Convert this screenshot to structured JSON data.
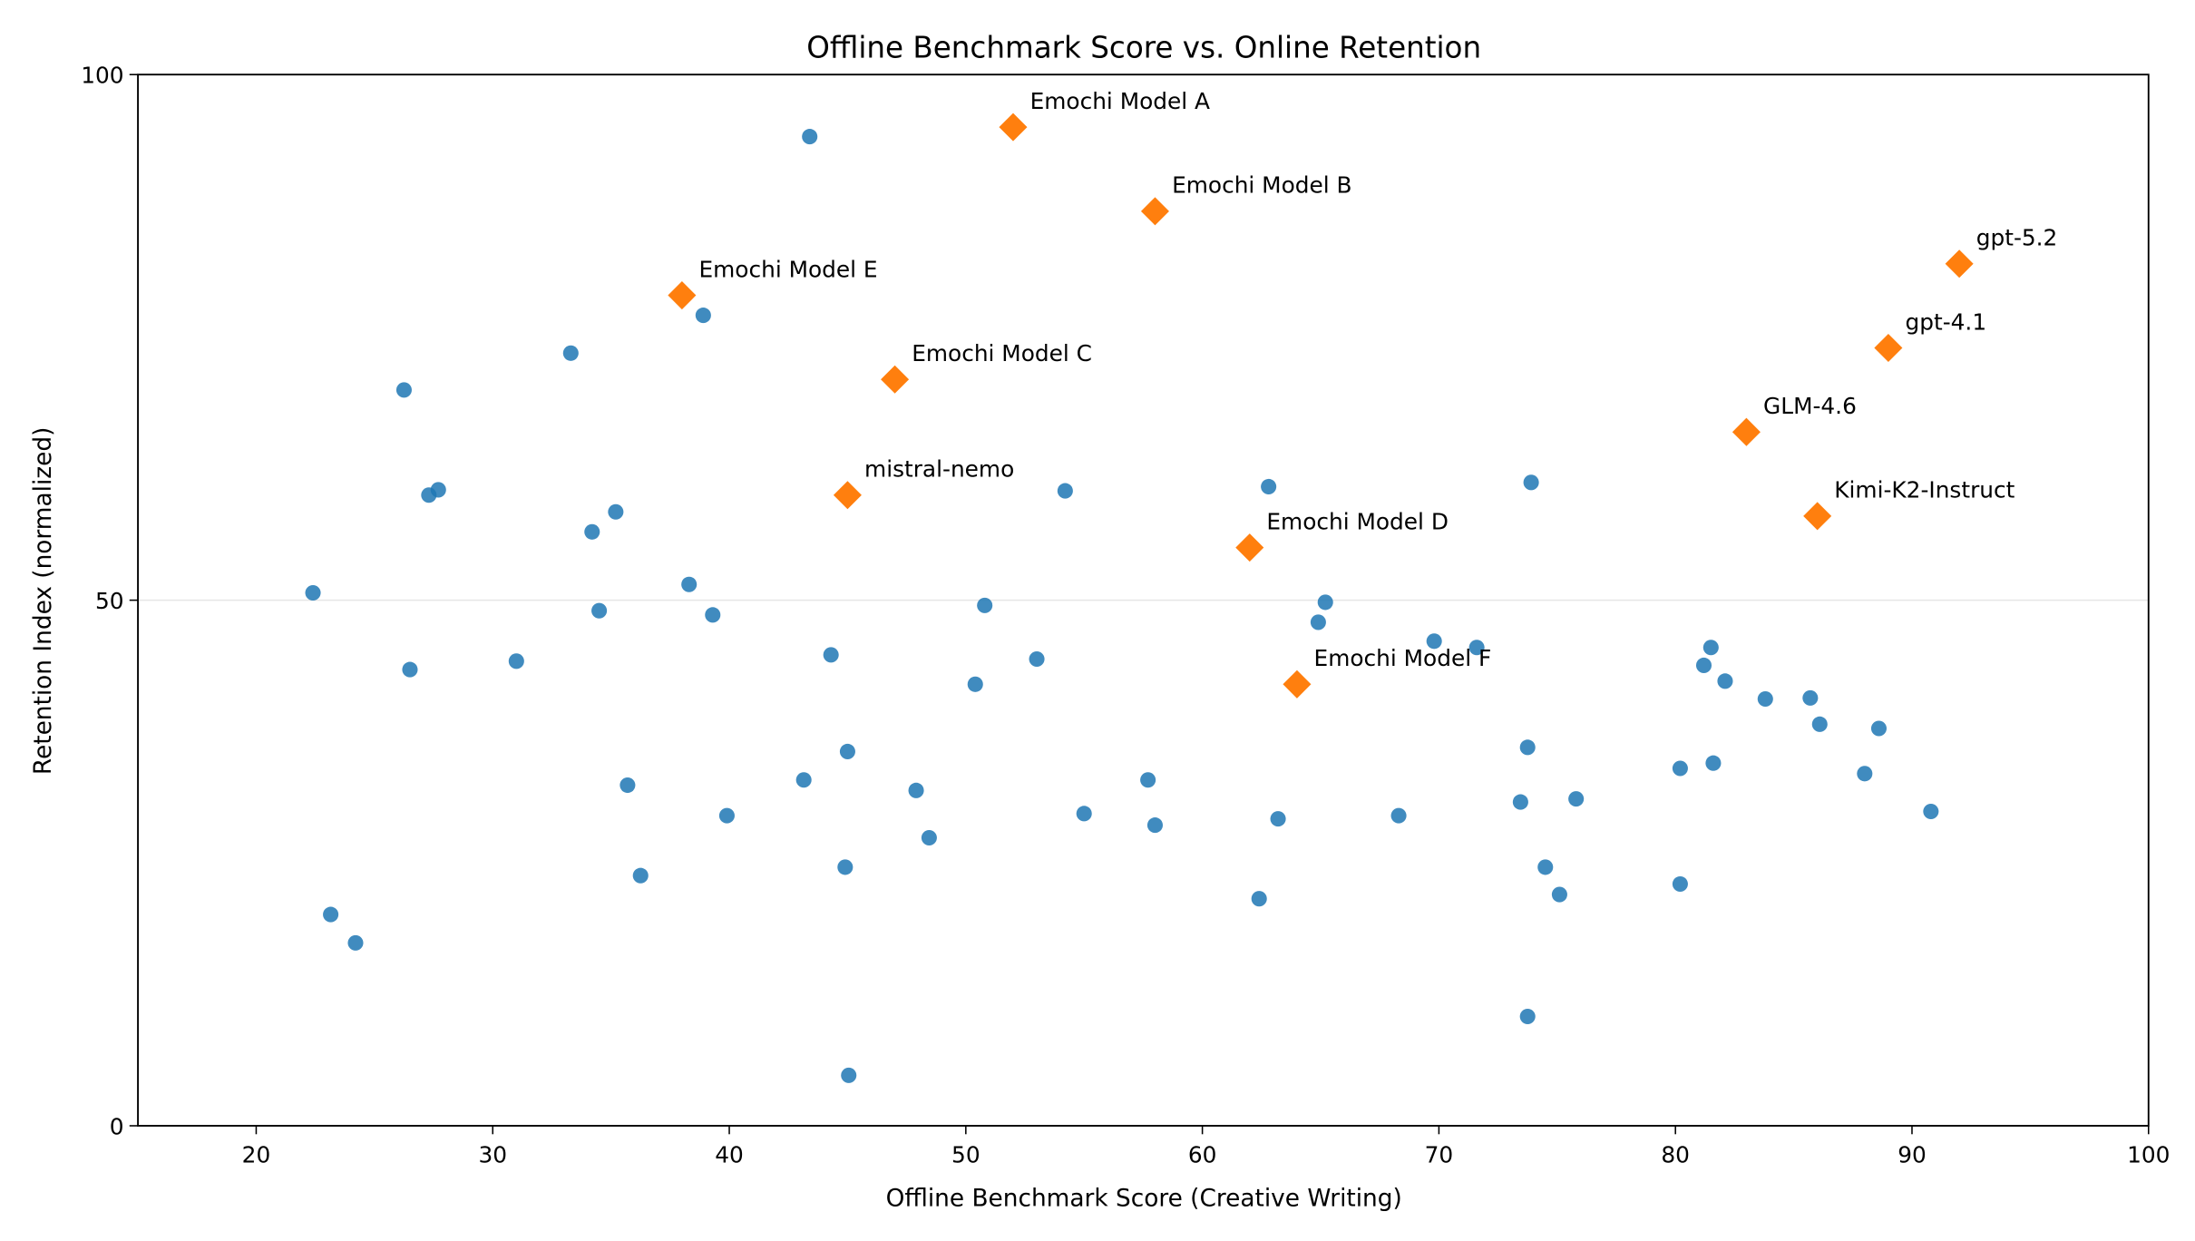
{
  "chart_data": {
    "type": "scatter",
    "title": "Offline Benchmark Score vs. Online Retention",
    "x_label": "Offline Benchmark Score (Creative Writing)",
    "y_label": "Retention Index (normalized)",
    "xlim": [
      15,
      100
    ],
    "xticks": [
      20,
      30,
      40,
      50,
      60,
      70,
      80,
      90,
      100
    ],
    "ylim": [
      0,
      100
    ],
    "yticks": [
      0,
      50,
      100
    ],
    "grid": "y",
    "series": [
      {
        "color": "#1f77b4",
        "marker": "circle",
        "x": [
          43.4,
          38.9,
          33.3,
          26.25,
          27.3,
          27.7,
          35.2,
          34.2,
          54.2,
          62.8,
          73.9,
          22.4,
          38.3,
          34.5,
          39.3,
          50.8,
          65.2,
          64.9,
          69.8,
          71.6,
          53.0,
          44.3,
          31.0,
          26.5,
          50.4,
          81.5,
          81.2,
          82.1,
          83.8,
          85.7,
          86.1,
          88.6,
          73.75,
          45.0,
          43.15,
          35.7,
          47.9,
          57.7,
          80.2,
          81.6,
          88.0,
          73.45,
          75.8,
          39.9,
          55.0,
          58.0,
          63.2,
          68.3,
          90.8,
          48.45,
          44.9,
          36.25,
          74.5,
          80.2,
          75.1,
          62.4,
          23.15,
          24.2,
          73.75,
          45.05
        ],
        "y": [
          94.1,
          77.1,
          73.5,
          70.0,
          60.0,
          60.5,
          58.4,
          56.5,
          60.4,
          60.8,
          61.2,
          50.7,
          51.5,
          49.0,
          48.6,
          49.5,
          49.8,
          47.9,
          46.1,
          45.5,
          44.4,
          44.8,
          44.2,
          43.4,
          42.0,
          45.5,
          43.8,
          42.3,
          40.6,
          40.7,
          38.2,
          37.8,
          36.0,
          35.6,
          32.9,
          32.4,
          31.9,
          32.9,
          34.0,
          34.5,
          33.5,
          30.8,
          31.1,
          29.5,
          29.7,
          28.6,
          29.2,
          29.5,
          29.9,
          27.4,
          24.6,
          23.8,
          24.6,
          23.0,
          22.0,
          21.6,
          20.1,
          17.4,
          10.4,
          4.8
        ]
      },
      {
        "color": "#ff7f0e",
        "marker": "diamond",
        "x": [
          52,
          58,
          38,
          47,
          45,
          62,
          64,
          92,
          89,
          83,
          86
        ],
        "y": [
          95,
          87,
          79,
          71,
          60,
          55,
          42,
          82,
          74,
          66,
          58
        ],
        "labels": [
          "Emochi Model A",
          "Emochi Model B",
          "Emochi Model E",
          "Emochi Model C",
          "mistral-nemo",
          "Emochi Model D",
          "Emochi Model F",
          "gpt-5.2",
          "gpt-4.1",
          "GLM-4.6",
          "Kimi-K2-Instruct"
        ]
      }
    ]
  }
}
